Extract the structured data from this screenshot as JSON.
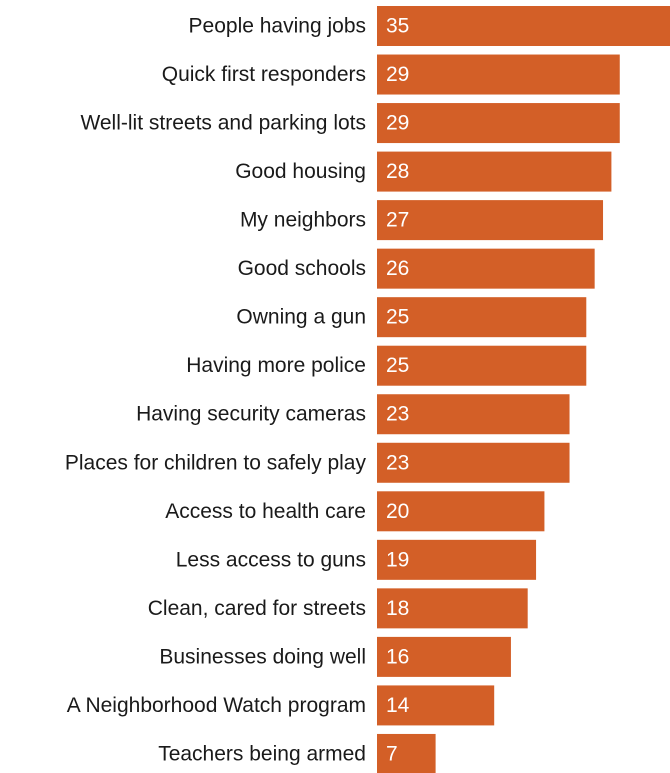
{
  "chart_data": {
    "type": "bar",
    "orientation": "horizontal",
    "categories": [
      "People having jobs",
      "Quick first responders",
      "Well-lit streets and parking lots",
      "Good housing",
      "My neighbors",
      "Good schools",
      "Owning a gun",
      "Having more police",
      "Having security cameras",
      "Places for children to safely play",
      "Access to health care",
      "Less access to guns",
      "Clean, cared for streets",
      "Businesses doing well",
      "A Neighborhood Watch program",
      "Teachers being armed"
    ],
    "values": [
      35,
      29,
      29,
      28,
      27,
      26,
      25,
      25,
      23,
      23,
      20,
      19,
      18,
      16,
      14,
      7
    ],
    "data_labels": [
      "35",
      "29",
      "29",
      "28",
      "27",
      "26",
      "25",
      "25",
      "23",
      "23",
      "20",
      "19",
      "18",
      "16",
      "14",
      "7"
    ],
    "bar_color": "#d35f27",
    "title": "",
    "xlabel": "",
    "ylabel": "",
    "xlim": [
      0,
      35
    ],
    "grid": false,
    "legend": "none"
  }
}
